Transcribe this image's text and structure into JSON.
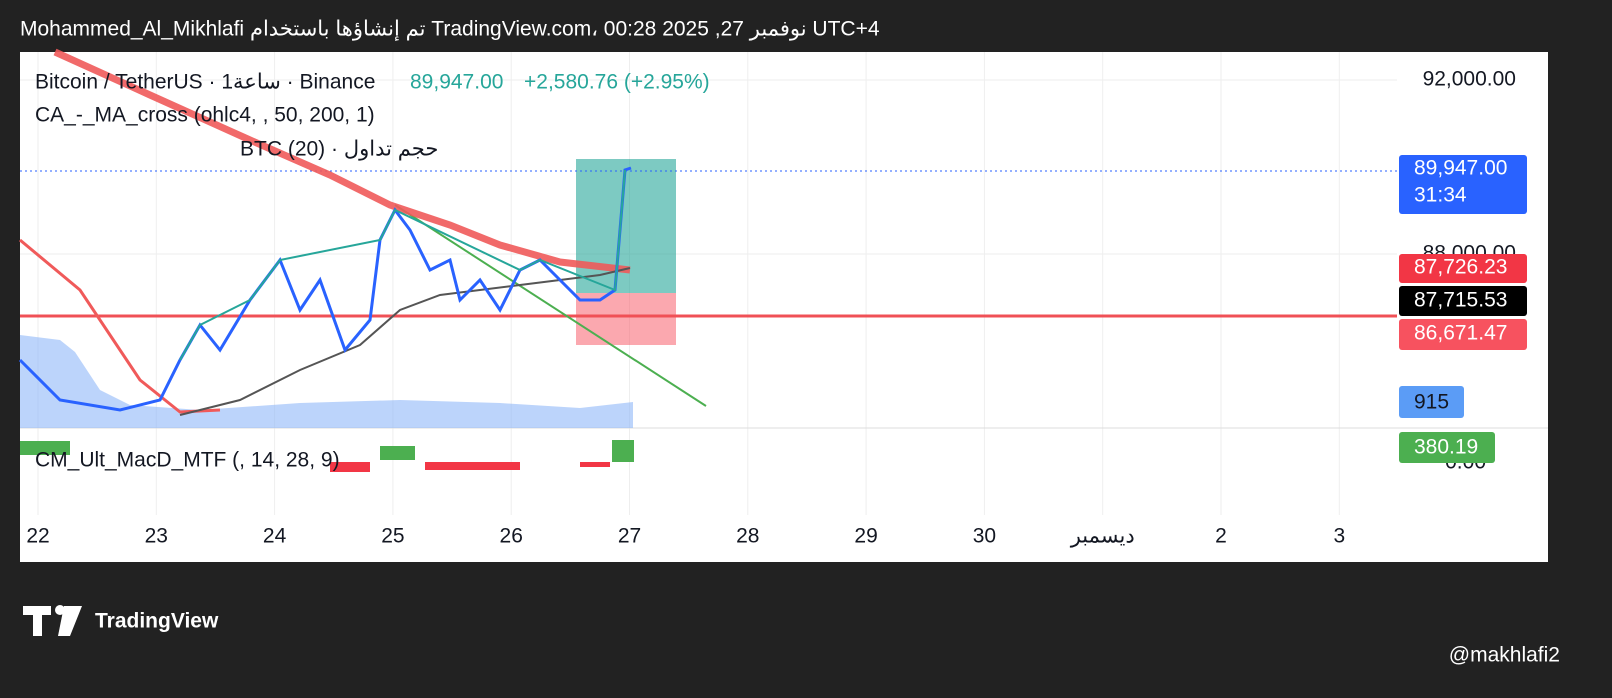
{
  "header": {
    "title": "Mohammed_Al_Mikhlafi تم إنشاؤها باستخدام TradingView.com، 00:28 2025 ,27 نوفمبر UTC+4"
  },
  "legend": {
    "symbol": "Bitcoin / TetherUS · 1ساعة · Binance",
    "price": "89,947.00",
    "change": "+2,580.76 (+2.95%)",
    "ma_cross": "CA_-_MA_cross (ohlc4, , 50, 200, 1)",
    "volume": "حجم تداول · BTC (20)",
    "macd": "CM_Ult_MacD_MTF (, 14, 28, 9)"
  },
  "price_axis": {
    "labels": [
      "92,000.00",
      "88,000.00",
      "0.00"
    ]
  },
  "badges": [
    {
      "text": "89,947.00",
      "sub": "31:34"
    },
    {
      "text": "87,726.23"
    },
    {
      "text": "87,715.53"
    },
    {
      "text": "86,671.47"
    },
    {
      "text": "915"
    },
    {
      "text": "380.19"
    }
  ],
  "time_axis": [
    "22",
    "23",
    "24",
    "25",
    "26",
    "27",
    "28",
    "29",
    "30",
    "ديسمبر",
    "2",
    "3"
  ],
  "footer": {
    "brand": "TradingView",
    "user": "@makhlafi2"
  }
}
